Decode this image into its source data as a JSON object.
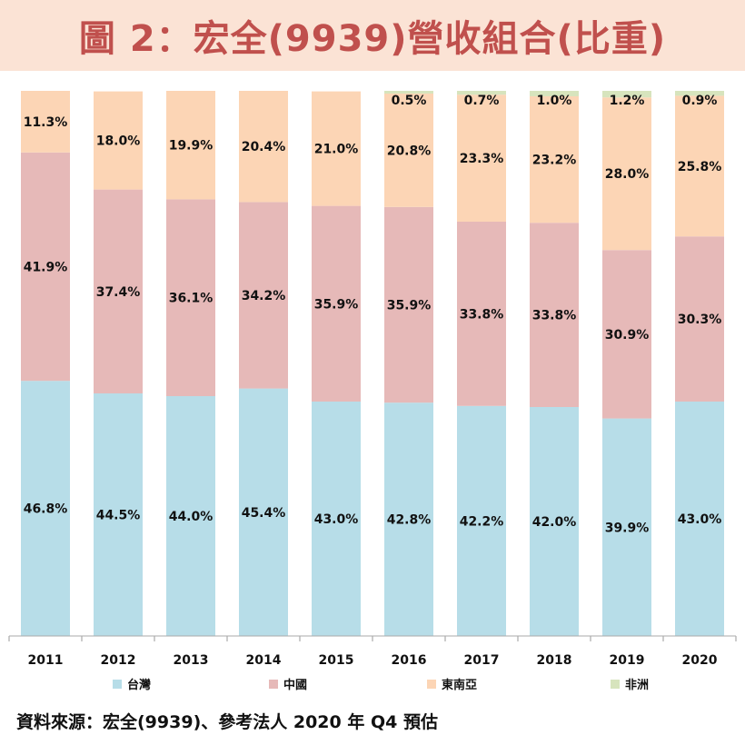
{
  "title": "圖 2：宏全(9939)營收組合(比重)",
  "source_note": "資料來源：宏全(9939)、參考法人 2020 年 Q4 預估",
  "colors": {
    "taiwan": "#b7dde8",
    "china": "#e6b9b8",
    "sea": "#fcd5b5",
    "africa": "#d7e4bd",
    "title": "#c0504d"
  },
  "chart_data": {
    "type": "bar",
    "stacked": true,
    "percent": true,
    "ylim": [
      0,
      100
    ],
    "legend_position": "bottom",
    "categories": [
      "2011",
      "2012",
      "2013",
      "2014",
      "2015",
      "2016",
      "2017",
      "2018",
      "2019",
      "2020"
    ],
    "series": [
      {
        "key": "taiwan",
        "name": "台灣",
        "values": [
          46.8,
          44.5,
          44.0,
          45.4,
          43.0,
          42.8,
          42.2,
          42.0,
          39.9,
          43.0
        ],
        "labels": [
          "46.8%",
          "44.5%",
          "44.0%",
          "45.4%",
          "43.0%",
          "42.8%",
          "42.2%",
          "42.0%",
          "39.9%",
          "43.0%"
        ]
      },
      {
        "key": "china",
        "name": "中國",
        "values": [
          41.9,
          37.4,
          36.1,
          34.2,
          35.9,
          35.9,
          33.8,
          33.8,
          30.9,
          30.3
        ],
        "labels": [
          "41.9%",
          "37.4%",
          "36.1%",
          "34.2%",
          "35.9%",
          "35.9%",
          "33.8%",
          "33.8%",
          "30.9%",
          "30.3%"
        ]
      },
      {
        "key": "sea",
        "name": "東南亞",
        "values": [
          11.3,
          18.0,
          19.9,
          20.4,
          21.0,
          20.8,
          23.3,
          23.2,
          28.0,
          25.8
        ],
        "labels": [
          "11.3%",
          "18.0%",
          "19.9%",
          "20.4%",
          "21.0%",
          "20.8%",
          "23.3%",
          "23.2%",
          "28.0%",
          "25.8%"
        ]
      },
      {
        "key": "africa",
        "name": "非洲",
        "values": [
          0,
          0,
          0,
          0,
          0,
          0.5,
          0.7,
          1.0,
          1.2,
          0.9
        ],
        "labels": [
          "",
          "",
          "",
          "",
          "",
          "0.5%",
          "0.7%",
          "1.0%",
          "1.2%",
          "0.9%"
        ]
      }
    ]
  }
}
